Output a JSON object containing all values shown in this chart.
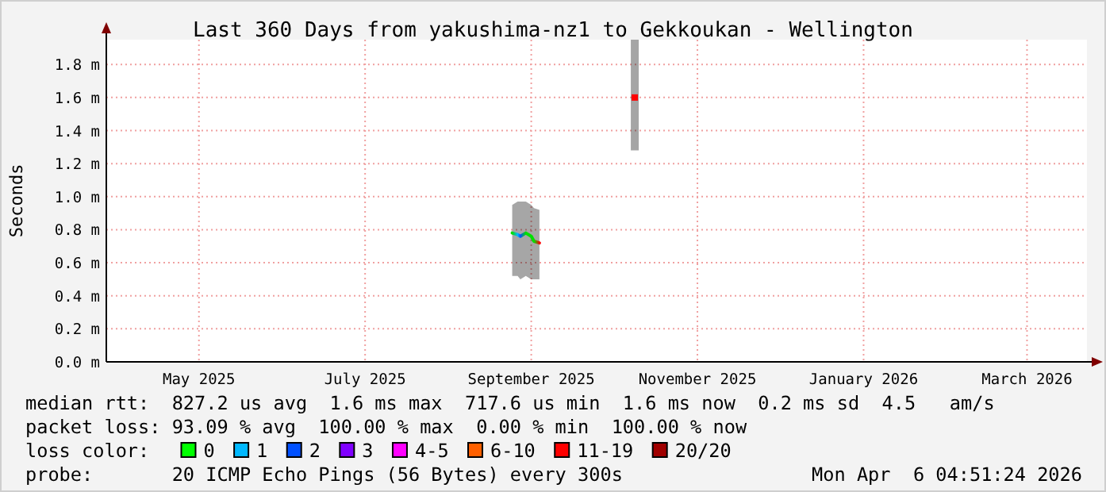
{
  "chart_data": {
    "type": "line",
    "title": "Last 360 Days from yakushima-nz1 to Gekkoukan - Wellington",
    "ylabel": "Seconds",
    "x": [
      "2025-09-07",
      "2025-09-09",
      "2025-09-10",
      "2025-09-12",
      "2025-09-14",
      "2025-09-15",
      "2025-09-17"
    ],
    "series": [
      {
        "colors": [
          "#00e000",
          "#00b8ff",
          "#0050ff",
          "#00e000",
          "#00e000",
          "#00e000",
          "#ff0000"
        ],
        "values": [
          0.78,
          0.77,
          0.76,
          0.78,
          0.76,
          0.73,
          0.72
        ],
        "lower": [
          0.52,
          0.52,
          0.5,
          0.52,
          0.5,
          0.5,
          0.5
        ],
        "upper": [
          0.95,
          0.97,
          0.97,
          0.97,
          0.95,
          0.93,
          0.92
        ]
      },
      {
        "type": "scatter",
        "marker": "square",
        "x": [
          "2025-10-22"
        ],
        "color": "#ff0000",
        "values": [
          1.6
        ],
        "errors": [
          [
            1.28,
            1.95
          ]
        ]
      }
    ],
    "xlim": [
      "2025-04-11",
      "2026-04-06"
    ],
    "xticks": [
      {
        "value": "2025-05-15",
        "label": "May 2025"
      },
      {
        "value": "2025-07-15",
        "label": "July 2025"
      },
      {
        "value": "2025-09-14",
        "label": "September 2025"
      },
      {
        "value": "2025-11-14",
        "label": "November 2025"
      },
      {
        "value": "2026-01-14",
        "label": "January 2026"
      },
      {
        "value": "2026-03-15",
        "label": "March 2026"
      }
    ],
    "ylim": [
      0,
      1.95
    ],
    "yticks": [
      {
        "value": 0,
        "label": "0.0 m"
      },
      {
        "value": 0.2,
        "label": "0.2 m"
      },
      {
        "value": 0.4,
        "label": "0.4 m"
      },
      {
        "value": 0.6,
        "label": "0.6 m"
      },
      {
        "value": 0.8,
        "label": "0.8 m"
      },
      {
        "value": 1.0,
        "label": "1.0 m"
      },
      {
        "value": 1.2,
        "label": "1.2 m"
      },
      {
        "value": 1.4,
        "label": "1.4 m"
      },
      {
        "value": 1.6,
        "label": "1.6 m"
      },
      {
        "value": 1.8,
        "label": "1.8 m"
      }
    ],
    "grid": true,
    "marker": "none",
    "line_style": "solid",
    "annotations": [
      "median rtt:  827.2 us avg  1.6 ms max  717.6 us min  1.6 ms now  0.2 ms sd  4.5   am/s",
      "packet loss: 93.09 % avg  100.00 % max  0.00 % min  100.00 % now",
      "loss color:",
      "0",
      "1",
      "2",
      "3",
      "4-5",
      "6-10",
      "11-19",
      "20/20",
      "probe:       20 ICMP Echo Pings (56 Bytes) every 300s",
      "Mon Apr  6 04:51:24 2026"
    ]
  }
}
